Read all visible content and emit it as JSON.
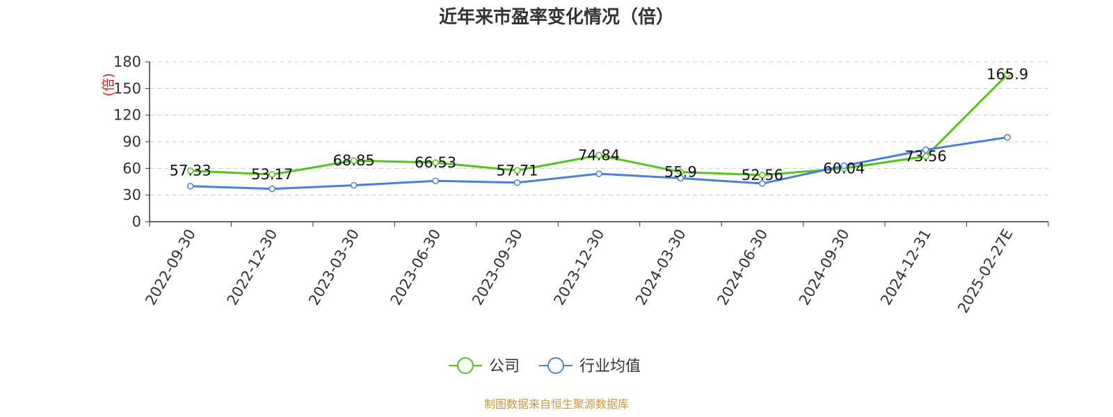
{
  "chart_data": {
    "type": "line",
    "title": "近年来市盈率变化情况（倍）",
    "ylabel": "(倍)",
    "ylim": [
      0,
      180
    ],
    "yticks": [
      0,
      30,
      60,
      90,
      120,
      150,
      180
    ],
    "grid": true,
    "legend_position": "bottom-center",
    "categories": [
      "2022-09-30",
      "2022-12-30",
      "2023-03-30",
      "2023-06-30",
      "2023-09-30",
      "2023-12-30",
      "2024-03-30",
      "2024-06-30",
      "2024-09-30",
      "2024-12-31",
      "2025-02-27E"
    ],
    "series": [
      {
        "name": "公司",
        "color": "#52c41a",
        "values": [
          57.33,
          53.17,
          68.85,
          66.53,
          57.71,
          74.84,
          55.9,
          52.56,
          60.04,
          73.56,
          165.9
        ],
        "labels": [
          "57.33",
          "53.17",
          "68.85",
          "66.53",
          "57.71",
          "74.84",
          "55.9",
          "52.56",
          "60.04",
          "73.56",
          "165.9"
        ]
      },
      {
        "name": "行业均值",
        "color": "#4a7fdc",
        "values": [
          40,
          37,
          41,
          46,
          44,
          54,
          49,
          43,
          63,
          81,
          95
        ]
      }
    ],
    "source": "制图数据来自恒生聚源数据库",
    "source_color": "#c8963e",
    "ylabel_color": "#e02020"
  }
}
